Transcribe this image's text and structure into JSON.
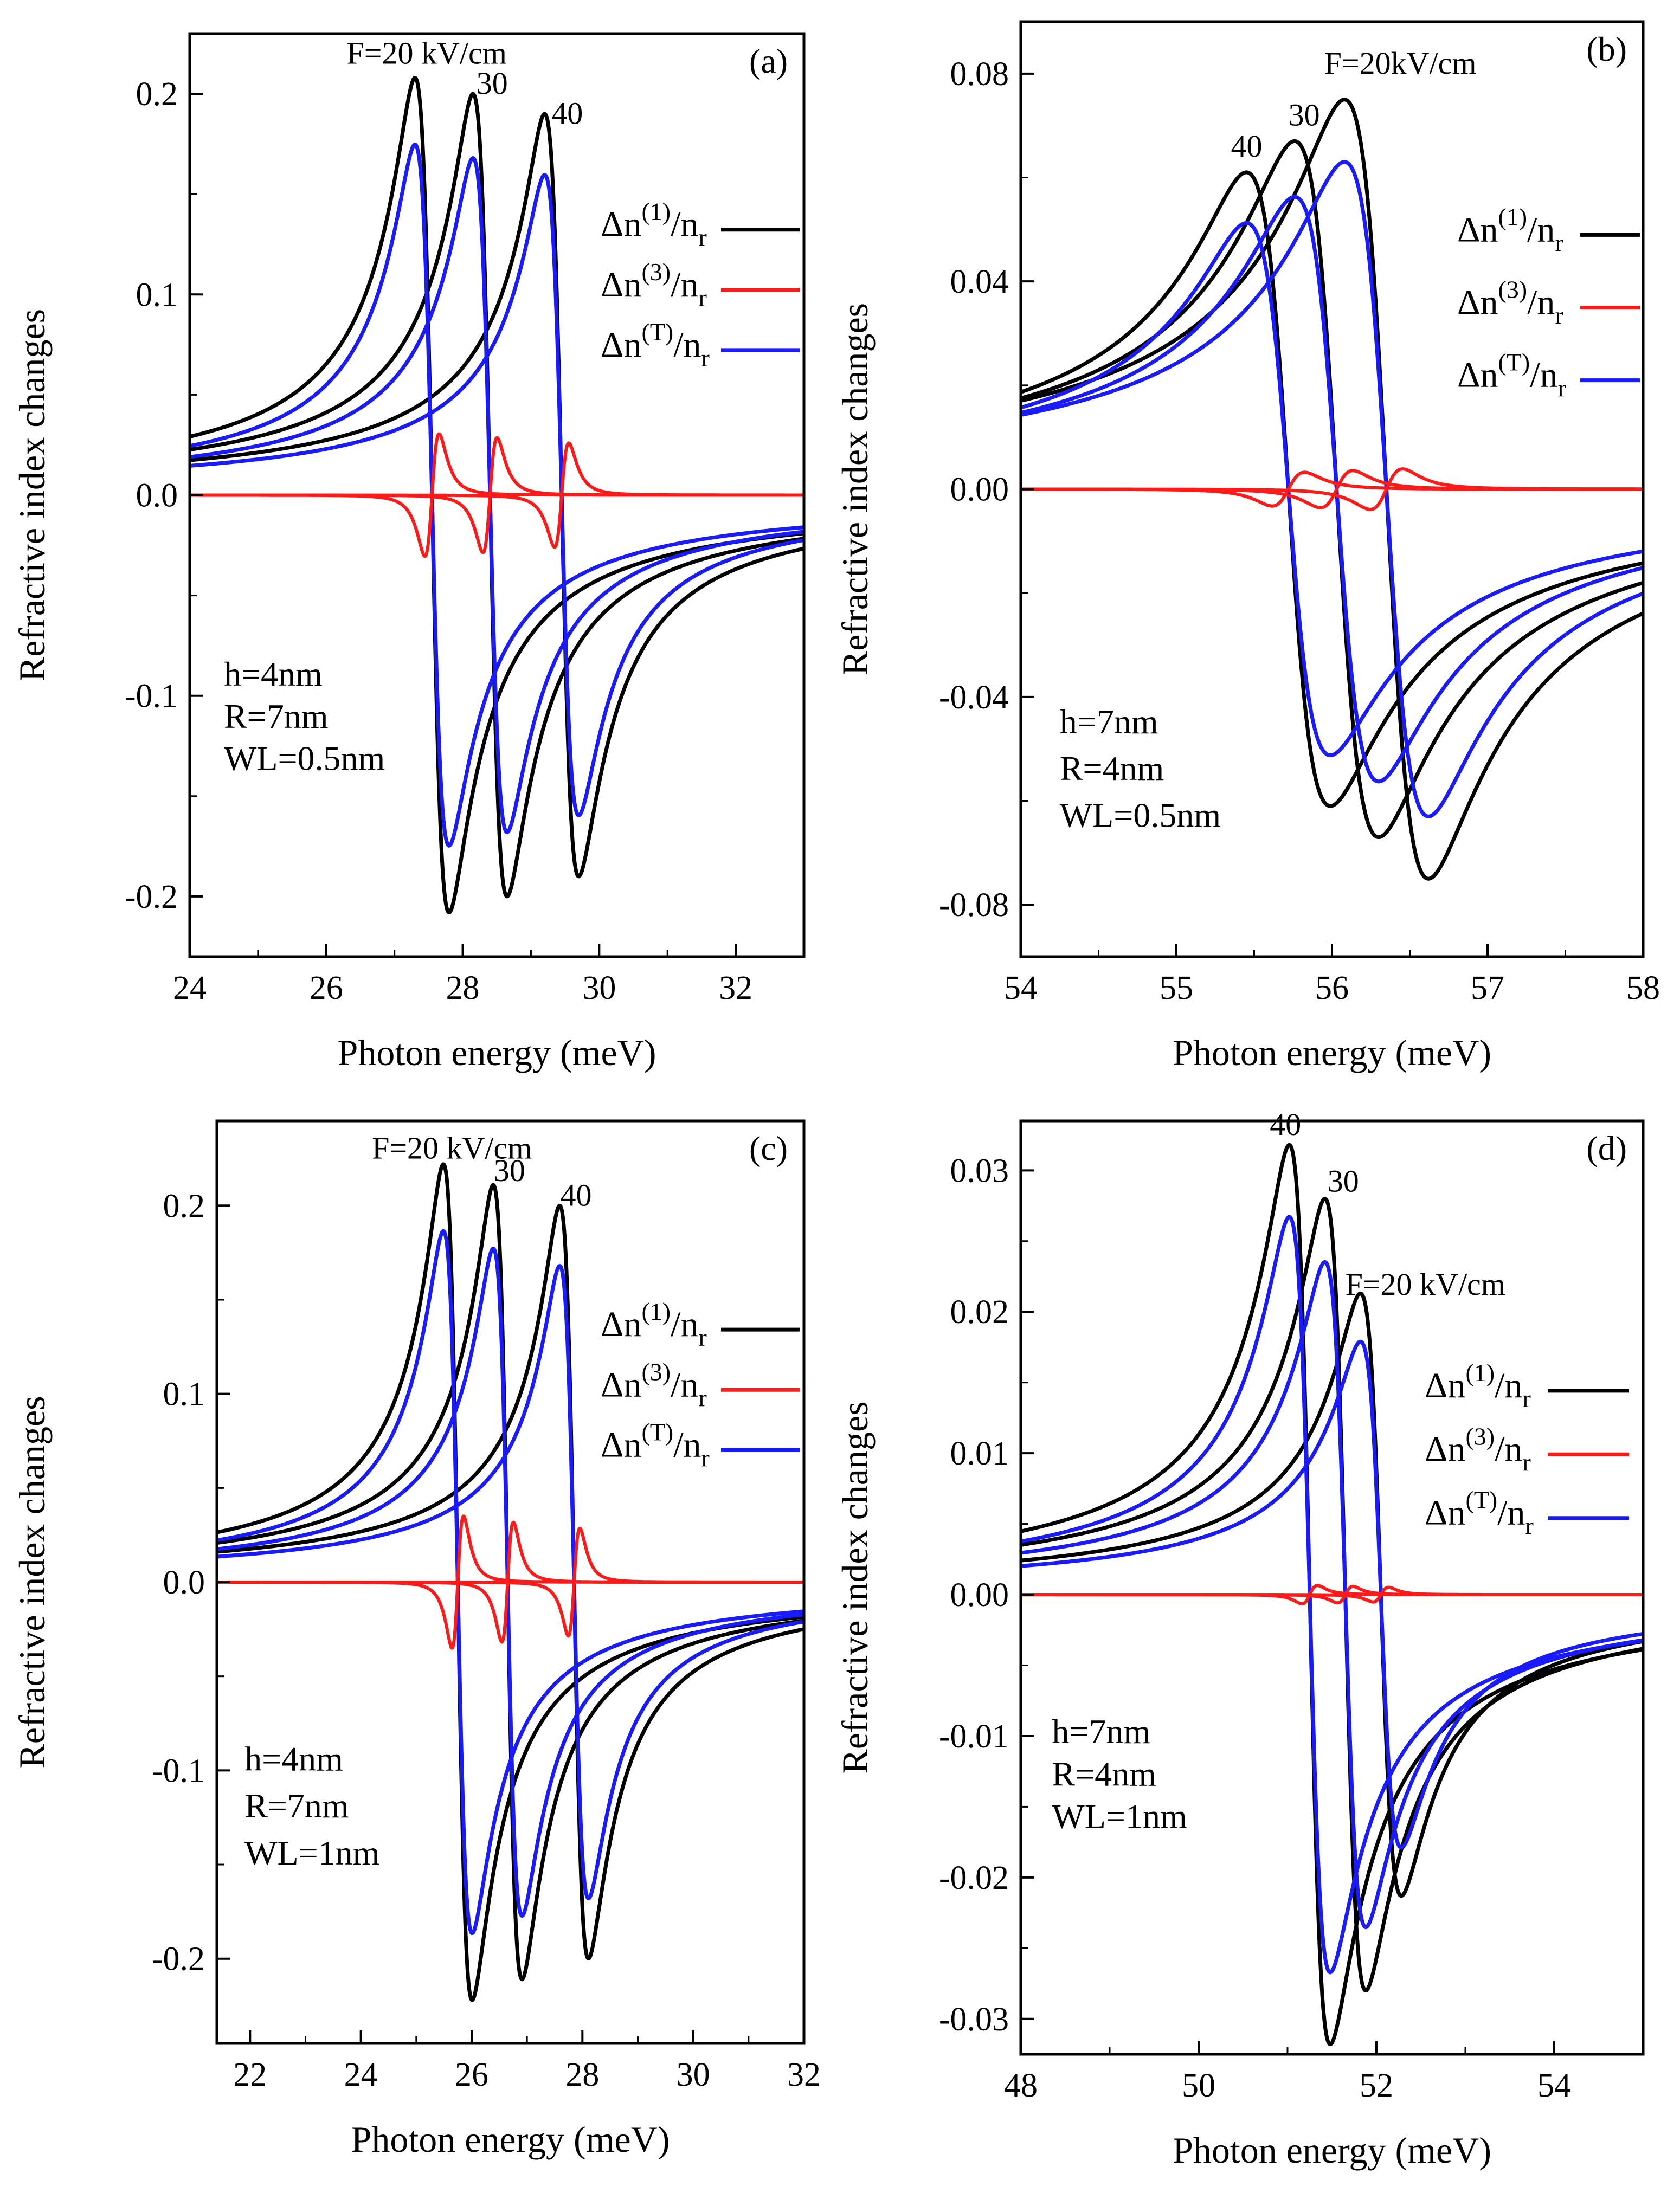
{
  "chart_data": [
    {
      "id": "a",
      "type": "line",
      "panel_label": "(a)",
      "xlabel": "Photon energy (meV)",
      "ylabel": "Refractive index changes",
      "xlim": [
        24,
        33
      ],
      "ylim": [
        -0.23,
        0.23
      ],
      "xticks": [
        24,
        26,
        28,
        30,
        32
      ],
      "xtick_labels": [
        "24",
        "26",
        "28",
        "30",
        "32"
      ],
      "yticks": [
        -0.2,
        -0.1,
        0.0,
        0.1,
        0.2
      ],
      "ytick_labels": [
        "-0.2",
        "-0.1",
        "0.0",
        "0.1",
        "0.2"
      ],
      "field_labels": [
        {
          "text": "F=20 kV/cm",
          "x": 26.3,
          "y": 0.215
        },
        {
          "text": "30",
          "x": 28.2,
          "y": 0.2
        },
        {
          "text": "40",
          "x": 29.3,
          "y": 0.185
        }
      ],
      "params": [
        "h=4nm",
        "R=7nm",
        "WL=0.5nm"
      ],
      "params_y": [
        -0.095,
        -0.116,
        -0.137
      ],
      "params_x": 24.5,
      "legend_position": "right",
      "legend_y": [
        0.135,
        0.105,
        0.075
      ],
      "curves": [
        {
          "E0": 27.55,
          "A1": 0.208,
          "gamma": 0.25,
          "A3": 0.047,
          "g3": 0.18
        },
        {
          "E0": 28.4,
          "A1": 0.2,
          "gamma": 0.25,
          "A3": 0.044,
          "g3": 0.18
        },
        {
          "E0": 29.45,
          "A1": 0.19,
          "gamma": 0.25,
          "A3": 0.04,
          "g3": 0.18
        }
      ]
    },
    {
      "id": "b",
      "type": "line",
      "panel_label": "(b)",
      "xlabel": "Photon energy (meV)",
      "ylabel": "Refractive index changes",
      "xlim": [
        54,
        58
      ],
      "ylim": [
        -0.09,
        0.09
      ],
      "xticks": [
        54,
        55,
        56,
        57,
        58
      ],
      "xtick_labels": [
        "54",
        "55",
        "56",
        "57",
        "58"
      ],
      "yticks": [
        -0.08,
        -0.04,
        0.0,
        0.04,
        0.08
      ],
      "ytick_labels": [
        "-0.08",
        "-0.04",
        "0.00",
        "0.04",
        "0.08"
      ],
      "field_labels": [
        {
          "text": "40",
          "x": 55.35,
          "y": 0.064
        },
        {
          "text": "30",
          "x": 55.72,
          "y": 0.07
        },
        {
          "text": "F=20kV/cm",
          "x": 55.95,
          "y": 0.08
        }
      ],
      "params": [
        "h=7nm",
        "R=4nm",
        "WL=0.5nm"
      ],
      "params_y": [
        -0.047,
        -0.056,
        -0.065
      ],
      "params_x": 54.25,
      "legend_position": "right",
      "legend_y": [
        0.05,
        0.036,
        0.022
      ],
      "curves": [
        {
          "E0": 56.35,
          "A1": 0.075,
          "gamma": 0.27,
          "A3": 0.006,
          "g3": 0.18
        },
        {
          "E0": 56.03,
          "A1": 0.067,
          "gamma": 0.27,
          "A3": 0.0055,
          "g3": 0.18
        },
        {
          "E0": 55.72,
          "A1": 0.061,
          "gamma": 0.27,
          "A3": 0.005,
          "g3": 0.18
        }
      ]
    },
    {
      "id": "c",
      "type": "line",
      "panel_label": "(c)",
      "xlabel": "Photon energy (meV)",
      "ylabel": "Refractive index changes",
      "xlim": [
        21.4,
        32
      ],
      "ylim": [
        -0.245,
        0.245
      ],
      "xticks": [
        22,
        24,
        26,
        28,
        30,
        32
      ],
      "xtick_labels": [
        "22",
        "24",
        "26",
        "28",
        "30",
        "32"
      ],
      "yticks": [
        -0.2,
        -0.1,
        0.0,
        0.1,
        0.2
      ],
      "ytick_labels": [
        "-0.2",
        "-0.1",
        "0.0",
        "0.1",
        "0.2"
      ],
      "field_labels": [
        {
          "text": "F=20 kV/cm",
          "x": 24.2,
          "y": 0.225
        },
        {
          "text": "30",
          "x": 26.4,
          "y": 0.213
        },
        {
          "text": "40",
          "x": 27.6,
          "y": 0.2
        }
      ],
      "params": [
        "h=4nm",
        "R=7nm",
        "WL=1nm"
      ],
      "params_y": [
        -0.1,
        -0.125,
        -0.15
      ],
      "params_x": 21.9,
      "legend_position": "right",
      "legend_y": [
        0.137,
        0.105,
        0.073
      ],
      "curves": [
        {
          "E0": 25.75,
          "A1": 0.222,
          "gamma": 0.26,
          "A3": 0.054,
          "g3": 0.18
        },
        {
          "E0": 26.65,
          "A1": 0.211,
          "gamma": 0.26,
          "A3": 0.049,
          "g3": 0.18
        },
        {
          "E0": 27.85,
          "A1": 0.2,
          "gamma": 0.26,
          "A3": 0.044,
          "g3": 0.18
        }
      ]
    },
    {
      "id": "d",
      "type": "line",
      "panel_label": "(d)",
      "xlabel": "Photon energy (meV)",
      "ylabel": "Refractive index changes",
      "xlim": [
        48,
        55
      ],
      "ylim": [
        -0.0325,
        0.0335
      ],
      "xticks": [
        48,
        50,
        52,
        54
      ],
      "xtick_labels": [
        "48",
        "50",
        "52",
        "54"
      ],
      "yticks": [
        -0.03,
        -0.02,
        -0.01,
        0.0,
        0.01,
        0.02,
        0.03
      ],
      "ytick_labels": [
        "-0.03",
        "-0.02",
        "-0.01",
        "0.00",
        "0.01",
        "0.02",
        "0.03"
      ],
      "field_labels": [
        {
          "text": "40",
          "x": 50.8,
          "y": 0.0325
        },
        {
          "text": "30",
          "x": 51.45,
          "y": 0.0285
        },
        {
          "text": "F=20 kV/cm",
          "x": 51.65,
          "y": 0.0212
        }
      ],
      "params": [
        "h=7nm",
        "R=4nm",
        "WL=1nm"
      ],
      "params_y": [
        -0.0105,
        -0.0135,
        -0.0165
      ],
      "params_x": 48.35,
      "legend_position": "right",
      "legend_y": [
        0.0148,
        0.0103,
        0.0058
      ],
      "curves": [
        {
          "E0": 52.05,
          "A1": 0.0213,
          "gamma": 0.23,
          "A3": 0.0008,
          "g3": 0.15
        },
        {
          "E0": 51.65,
          "A1": 0.028,
          "gamma": 0.23,
          "A3": 0.0009,
          "g3": 0.15
        },
        {
          "E0": 51.25,
          "A1": 0.0318,
          "gamma": 0.23,
          "A3": 0.001,
          "g3": 0.15
        }
      ]
    }
  ],
  "legend": [
    {
      "base": "Δn",
      "sup": "(1)",
      "tail": "/n",
      "sub": "r",
      "color": "#000000"
    },
    {
      "base": "Δn",
      "sup": "(3)",
      "tail": "/n",
      "sub": "r",
      "color": "#ff1a1a"
    },
    {
      "base": "Δn",
      "sup": "(T)",
      "tail": "/n",
      "sub": "r",
      "color": "#1a1aff"
    }
  ],
  "colors": {
    "first_order": "#000000",
    "third_order": "#ff1a1a",
    "total": "#1a1aff"
  }
}
